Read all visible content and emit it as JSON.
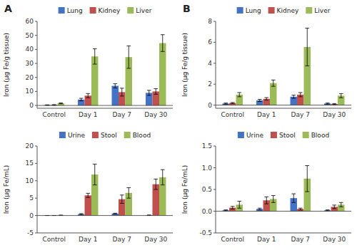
{
  "chart_data": [
    {
      "type": "bar",
      "title": "A",
      "ylabel": "Iron (μg Fe/g tissue)",
      "categories": [
        "Control",
        "Day 1",
        "Day 7",
        "Day 30"
      ],
      "series": [
        {
          "name": "Lung",
          "color": "#4472C4",
          "values": [
            0.3,
            4.2,
            14.0,
            9.0
          ],
          "errors": [
            0.15,
            0.9,
            1.5,
            1.8
          ]
        },
        {
          "name": "Kidney",
          "color": "#C0504D",
          "values": [
            0.4,
            7.0,
            9.5,
            10.0
          ],
          "errors": [
            0.2,
            1.5,
            2.8,
            2.0
          ]
        },
        {
          "name": "Liver",
          "color": "#9BBB59",
          "values": [
            1.5,
            35.0,
            34.5,
            44.5
          ],
          "errors": [
            0.3,
            5.5,
            8.0,
            6.0
          ]
        }
      ],
      "ylim": [
        -2,
        60
      ],
      "yticks": [
        0,
        10,
        20,
        30,
        40,
        50,
        60
      ],
      "grid": false,
      "legend": "top"
    },
    {
      "type": "bar",
      "title": "B",
      "ylabel": "Iron (μg Fe/g tissue)",
      "categories": [
        "Control",
        "Day 1",
        "Day 7",
        "Day 30"
      ],
      "series": [
        {
          "name": "Lung",
          "color": "#4472C4",
          "values": [
            0.15,
            0.45,
            0.8,
            0.15
          ],
          "errors": [
            0.05,
            0.1,
            0.15,
            0.05
          ]
        },
        {
          "name": "Kidney",
          "color": "#C0504D",
          "values": [
            0.2,
            0.6,
            1.0,
            0.1
          ],
          "errors": [
            0.05,
            0.12,
            0.2,
            0.05
          ]
        },
        {
          "name": "Liver",
          "color": "#9BBB59",
          "values": [
            1.0,
            2.1,
            5.55,
            0.9
          ],
          "errors": [
            0.2,
            0.3,
            1.8,
            0.2
          ]
        }
      ],
      "ylim": [
        -0.3,
        8
      ],
      "yticks": [
        0,
        2,
        4,
        6,
        8
      ],
      "grid": false,
      "legend": "top"
    },
    {
      "type": "bar",
      "ylabel": "Iron (μg Fe/mL)",
      "categories": [
        "Control",
        "Day 1",
        "Day 7",
        "Day 30"
      ],
      "series": [
        {
          "name": "Urine",
          "color": "#4472C4",
          "values": [
            0.02,
            0.4,
            0.55,
            0.1
          ],
          "errors": [
            0.01,
            0.15,
            0.12,
            0.05
          ]
        },
        {
          "name": "Stool",
          "color": "#C0504D",
          "values": [
            0.02,
            5.8,
            4.7,
            9.0
          ],
          "errors": [
            0.01,
            0.6,
            1.2,
            1.5
          ]
        },
        {
          "name": "Blood",
          "color": "#9BBB59",
          "values": [
            0.08,
            11.8,
            6.5,
            11.0
          ],
          "errors": [
            0.03,
            3.0,
            1.5,
            2.2
          ]
        }
      ],
      "ylim": [
        -5,
        20
      ],
      "yticks": [
        -5,
        0,
        5,
        10,
        15,
        20
      ],
      "grid": false,
      "legend": "top"
    },
    {
      "type": "bar",
      "ylabel": "Iron (μg Fe/mL)",
      "categories": [
        "Control",
        "Day 1",
        "Day 7",
        "Day 30"
      ],
      "series": [
        {
          "name": "Urine",
          "color": "#4472C4",
          "values": [
            0.02,
            0.05,
            0.3,
            0.02
          ],
          "errors": [
            0.01,
            0.02,
            0.1,
            0.01
          ]
        },
        {
          "name": "Stool",
          "color": "#C0504D",
          "values": [
            0.08,
            0.25,
            0.05,
            0.1
          ],
          "errors": [
            0.03,
            0.08,
            0.02,
            0.04
          ]
        },
        {
          "name": "Blood",
          "color": "#9BBB59",
          "values": [
            0.15,
            0.28,
            0.75,
            0.15
          ],
          "errors": [
            0.08,
            0.08,
            0.3,
            0.05
          ]
        }
      ],
      "ylim": [
        -0.5,
        1.5
      ],
      "yticks": [
        -0.5,
        {
          "value": 0.0,
          "label": "0.0"
        },
        0.5,
        {
          "value": 1.0,
          "label": "1.0"
        },
        1.5
      ],
      "grid": false,
      "legend": "top"
    }
  ]
}
